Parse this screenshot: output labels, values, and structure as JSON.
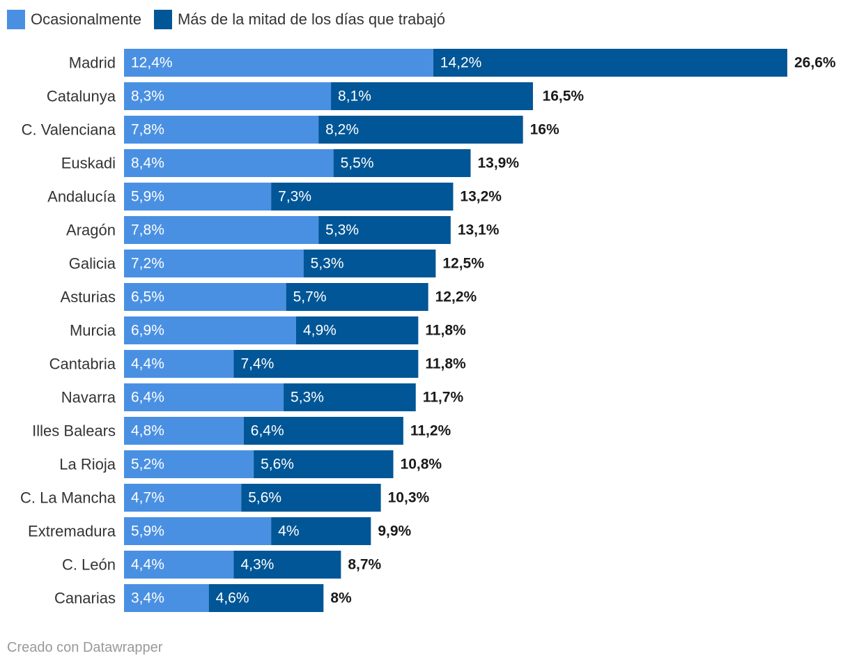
{
  "chart_data": {
    "type": "bar",
    "orientation": "horizontal",
    "stacked": true,
    "categories": [
      "Madrid",
      "Catalunya",
      "C. Valenciana",
      "Euskadi",
      "Andalucía",
      "Aragón",
      "Galicia",
      "Asturias",
      "Murcia",
      "Cantabria",
      "Navarra",
      "Illes Balears",
      "La Rioja",
      "C. La Mancha",
      "Extremadura",
      "C. León",
      "Canarias"
    ],
    "series": [
      {
        "name": "Ocasionalmente",
        "color": "#4a90e2",
        "values": [
          12.4,
          8.3,
          7.8,
          8.4,
          5.9,
          7.8,
          7.2,
          6.5,
          6.9,
          4.4,
          6.4,
          4.8,
          5.2,
          4.7,
          5.9,
          4.4,
          3.4
        ],
        "labels": [
          "12,4%",
          "8,3%",
          "7,8%",
          "8,4%",
          "5,9%",
          "7,8%",
          "7,2%",
          "6,5%",
          "6,9%",
          "4,4%",
          "6,4%",
          "4,8%",
          "5,2%",
          "4,7%",
          "5,9%",
          "4,4%",
          "3,4%"
        ]
      },
      {
        "name": "Más de la mitad de los días que trabajó",
        "color": "#005696",
        "values": [
          14.2,
          8.1,
          8.2,
          5.5,
          7.3,
          5.3,
          5.3,
          5.7,
          4.9,
          7.4,
          5.3,
          6.4,
          5.6,
          5.6,
          4.0,
          4.3,
          4.6
        ],
        "labels": [
          "14,2%",
          "8,1%",
          "8,2%",
          "5,5%",
          "7,3%",
          "5,3%",
          "5,3%",
          "5,7%",
          "4,9%",
          "7,4%",
          "5,3%",
          "6,4%",
          "5,6%",
          "5,6%",
          "4%",
          "4,3%",
          "4,6%"
        ]
      }
    ],
    "totals": [
      26.6,
      16.5,
      16.0,
      13.9,
      13.2,
      13.1,
      12.5,
      12.2,
      11.8,
      11.8,
      11.7,
      11.2,
      10.8,
      10.3,
      9.9,
      8.7,
      8.0
    ],
    "total_labels": [
      "26,6%",
      "16,5%",
      "16%",
      "13,9%",
      "13,2%",
      "13,1%",
      "12,5%",
      "12,2%",
      "11,8%",
      "11,8%",
      "11,7%",
      "11,2%",
      "10,8%",
      "10,3%",
      "9,9%",
      "8,7%",
      "8%"
    ],
    "xlim": [
      0,
      26.6
    ],
    "grid": false,
    "legend_position": "top-left"
  },
  "footer": "Creado con Datawrapper"
}
